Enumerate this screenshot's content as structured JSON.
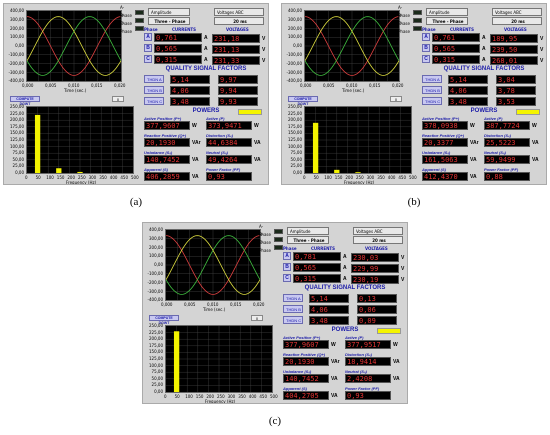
{
  "captions": [
    "(a)",
    "(b)",
    "(c)"
  ],
  "common": {
    "legend": [
      "A-Phase",
      "B-Phase",
      "C-Phase"
    ],
    "dropdown1": "Amplitude",
    "dropdown1b": "Three - Phase",
    "dropdown2": "Voltages ABC",
    "dropdown2b": "20 ms",
    "phase_label": "Phase",
    "currents_label": "CURRENTS",
    "voltages_label": "VOLTAGES",
    "qsf_title": "QUALITY SIGNAL FACTORS",
    "thd_labels": [
      "THDN A",
      "THDN B",
      "THDN C"
    ],
    "powers_title": "POWERS",
    "abc": [
      "A",
      "B",
      "C"
    ],
    "time_axis": "Time (sec.)",
    "freq_axis": "Frequency (Hz)",
    "compute_btn": "COMPUTE DGWT",
    "knob": "0",
    "units": {
      "A": "A",
      "V": "V",
      "W": "W",
      "VAr": "VAr",
      "VA": "VA"
    },
    "power_labels": [
      "Active Positive (P+)",
      "Active (P)",
      "Reactive Positive (Q+)",
      "Distortion (S₄)",
      "Unbalance (Sₙ)",
      "Neutral (Sₙ)",
      "Apparent (S)",
      "Power Factor (PF)"
    ],
    "wave_yticks": [
      "400,00",
      "300,00",
      "200,00",
      "100,00",
      "0,00",
      "-100,00",
      "-200,00",
      "-300,00",
      "-400,00"
    ],
    "wave_xticks": [
      "0,000",
      "0,005",
      "0,010",
      "0,015",
      "0,020"
    ],
    "spec_yticks": [
      "250,00",
      "225,00",
      "200,00",
      "175,00",
      "150,00",
      "125,00",
      "100,00",
      "75,00",
      "50,00",
      "25,00",
      "0,00"
    ],
    "spec_xticks": [
      "0",
      "50",
      "100",
      "150",
      "200",
      "250",
      "300",
      "350",
      "400",
      "450",
      "500"
    ],
    "colors": {
      "phaseA": "#e04040",
      "phaseB": "#40c040",
      "phaseC": "#e0e040",
      "bar": "#f4f400",
      "value_text": "#e23434"
    }
  },
  "panels": [
    {
      "currents": [
        "0,761",
        "0,565",
        "0,315"
      ],
      "voltages": [
        "231,18",
        "231,13",
        "231,33"
      ],
      "thd_left": [
        "5,14",
        "4,06",
        "3,48"
      ],
      "thd_right": [
        "9,97",
        "9,94",
        "9,93"
      ],
      "powers": [
        "377,9607",
        "373,9471",
        "20,1930",
        "44,6384",
        "140,7452",
        "49,4264",
        "406,2859",
        "0,93"
      ]
    },
    {
      "currents": [
        "0,761",
        "0,565",
        "0,315"
      ],
      "voltages": [
        "189,95",
        "239,50",
        "268,01"
      ],
      "thd_left": [
        "5,14",
        "4,06",
        "3,48"
      ],
      "thd_right": [
        "3,04",
        "3,78",
        "3,53"
      ],
      "powers": [
        "378,0938",
        "387,7724",
        "20,3377",
        "25,5223",
        "161,5063",
        "59,9499",
        "412,4370",
        "0,88"
      ]
    },
    {
      "currents": [
        "0,781",
        "0,565",
        "0,315"
      ],
      "voltages": [
        "230,03",
        "229,99",
        "230,19"
      ],
      "thd_left": [
        "5,14",
        "4,06",
        "3,48"
      ],
      "thd_right": [
        "0,13",
        "0,06",
        "0,09"
      ],
      "powers": [
        "377,9607",
        "377,9517",
        "20,1930",
        "18,9414",
        "140,7452",
        "2,4208",
        "404,2705",
        "0,93"
      ]
    }
  ],
  "chart_data": [
    {
      "type": "bar",
      "xlabel": "Frequency (Hz)",
      "x": [
        50,
        150,
        250
      ],
      "values": [
        220,
        18,
        4
      ],
      "ylim": [
        0,
        250
      ],
      "xlim": [
        0,
        500
      ]
    },
    {
      "type": "bar",
      "xlabel": "Frequency (Hz)",
      "x": [
        50,
        150,
        250
      ],
      "values": [
        190,
        12,
        3
      ],
      "ylim": [
        0,
        250
      ],
      "xlim": [
        0,
        500
      ]
    },
    {
      "type": "bar",
      "xlabel": "Frequency (Hz)",
      "x": [
        50
      ],
      "values": [
        230
      ],
      "ylim": [
        0,
        250
      ],
      "xlim": [
        0,
        500
      ]
    }
  ]
}
